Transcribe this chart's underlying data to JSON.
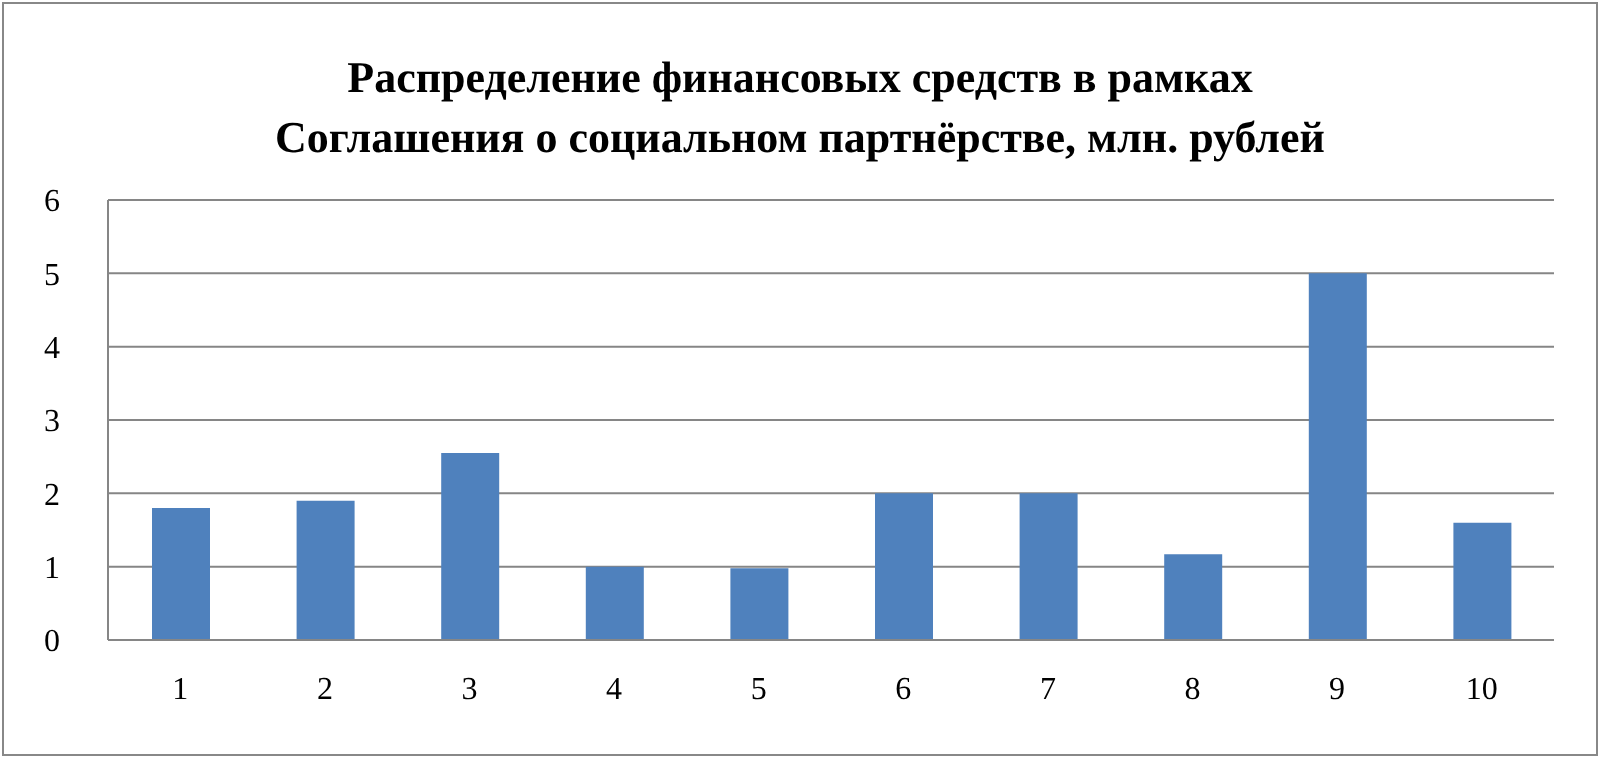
{
  "chart_data": {
    "type": "bar",
    "title": "Распределение финансовых средств в рамках\nСоглашения о социальном партнёрстве, млн. рублей",
    "categories": [
      "1",
      "2",
      "3",
      "4",
      "5",
      "6",
      "7",
      "8",
      "9",
      "10"
    ],
    "values": [
      1.8,
      1.9,
      2.55,
      1.0,
      0.98,
      2.0,
      2.0,
      1.17,
      5.0,
      1.6
    ],
    "color": "#4f81bd",
    "ylim": [
      0,
      6
    ],
    "yticks": [
      0,
      1,
      2,
      3,
      4,
      5,
      6
    ],
    "grid": "y",
    "legend": false
  }
}
